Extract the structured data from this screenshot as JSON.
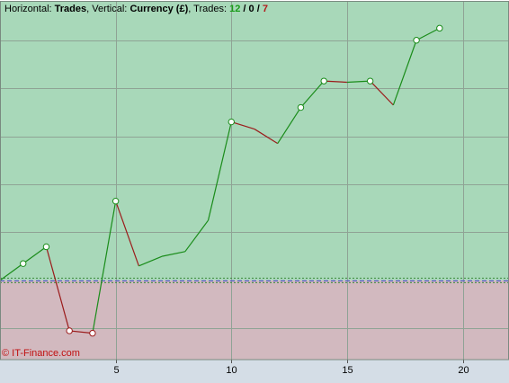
{
  "header": {
    "horizontal_label": "Horizontal:",
    "horizontal_value": "Trades",
    "vertical_label": "Vertical:",
    "vertical_value": "Currency (£)",
    "trades_label": "Trades:",
    "trades_wins": "12",
    "trades_breakeven": "0",
    "trades_losses": "7",
    "comma": ",",
    "slash": "/"
  },
  "copyright": "© IT-Finance.com",
  "colors": {
    "profit_zone": "#a8d8b9",
    "loss_zone": "#d2b9bf",
    "win": "#1a8c1a",
    "loss": "#9b1b1b",
    "win_text": "#1a9c1a",
    "loss_text": "#b11a1a",
    "grid": "#8fa395",
    "axis_bg": "#d4dde6",
    "baseline": "#5a5ac8",
    "baseline_dots": "#3a8a3a"
  },
  "chart_data": {
    "type": "line",
    "x_ticks": [
      5,
      10,
      15,
      20
    ],
    "x_tick_labels": [
      "5",
      "10",
      "15",
      "20"
    ],
    "xlim": [
      0,
      22
    ],
    "ylim": [
      -33,
      116
    ],
    "y_grid_step": 20,
    "grid": true,
    "baseline": 0,
    "points": [
      {
        "x": 0,
        "y": 0,
        "marker": false,
        "color": "none"
      },
      {
        "x": 1,
        "y": 7,
        "marker": true,
        "color": "win"
      },
      {
        "x": 2,
        "y": 14,
        "marker": true,
        "color": "win"
      },
      {
        "x": 3,
        "y": -21,
        "marker": true,
        "color": "loss"
      },
      {
        "x": 4,
        "y": -22,
        "marker": true,
        "color": "loss"
      },
      {
        "x": 5,
        "y": 33,
        "marker": true,
        "color": "win"
      },
      {
        "x": 6,
        "y": 6,
        "marker": false,
        "color": "loss"
      },
      {
        "x": 7,
        "y": 10,
        "marker": false,
        "color": "win"
      },
      {
        "x": 8,
        "y": 12,
        "marker": false,
        "color": "win"
      },
      {
        "x": 9,
        "y": 25,
        "marker": false,
        "color": "win"
      },
      {
        "x": 10,
        "y": 66,
        "marker": true,
        "color": "win"
      },
      {
        "x": 11,
        "y": 63,
        "marker": false,
        "color": "loss"
      },
      {
        "x": 12,
        "y": 57,
        "marker": false,
        "color": "loss"
      },
      {
        "x": 13,
        "y": 72,
        "marker": true,
        "color": "win"
      },
      {
        "x": 14,
        "y": 83,
        "marker": true,
        "color": "win"
      },
      {
        "x": 15,
        "y": 82.5,
        "marker": false,
        "color": "loss"
      },
      {
        "x": 16,
        "y": 83,
        "marker": true,
        "color": "win"
      },
      {
        "x": 17,
        "y": 73,
        "marker": false,
        "color": "loss"
      },
      {
        "x": 18,
        "y": 100,
        "marker": true,
        "color": "win"
      },
      {
        "x": 19,
        "y": 105,
        "marker": true,
        "color": "win"
      }
    ]
  }
}
